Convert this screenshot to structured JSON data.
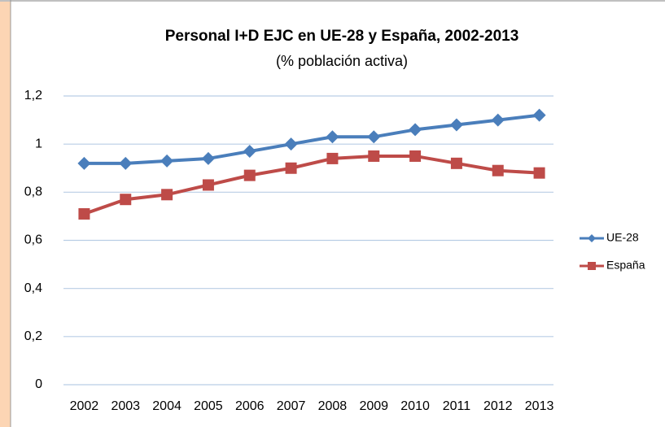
{
  "chart_data": {
    "type": "line",
    "title": "Personal I+D EJC en UE-28 y España, 2002-2013",
    "subtitle": "(% población activa)",
    "categories": [
      "2002",
      "2003",
      "2004",
      "2005",
      "2006",
      "2007",
      "2008",
      "2009",
      "2010",
      "2011",
      "2012",
      "2013"
    ],
    "series": [
      {
        "name": "UE-28",
        "color": "#4a7ebb",
        "marker": "diamond",
        "values": [
          0.92,
          0.92,
          0.93,
          0.94,
          0.97,
          1.0,
          1.03,
          1.03,
          1.06,
          1.08,
          1.1,
          1.12
        ]
      },
      {
        "name": "España",
        "color": "#be4b48",
        "marker": "square",
        "values": [
          0.71,
          0.77,
          0.79,
          0.83,
          0.87,
          0.9,
          0.94,
          0.95,
          0.95,
          0.92,
          0.89,
          0.88
        ]
      }
    ],
    "ylim": [
      0,
      1.2
    ],
    "yticks": [
      0,
      {
        "value": 0.2,
        "label": "0,2"
      },
      {
        "value": 0.4,
        "label": "0,4"
      },
      {
        "value": 0.6,
        "label": "0,6"
      },
      {
        "value": 0.8,
        "label": "0,8"
      },
      1,
      {
        "value": 1.2,
        "label": "1,2"
      }
    ],
    "grid": true,
    "legend": "right"
  }
}
